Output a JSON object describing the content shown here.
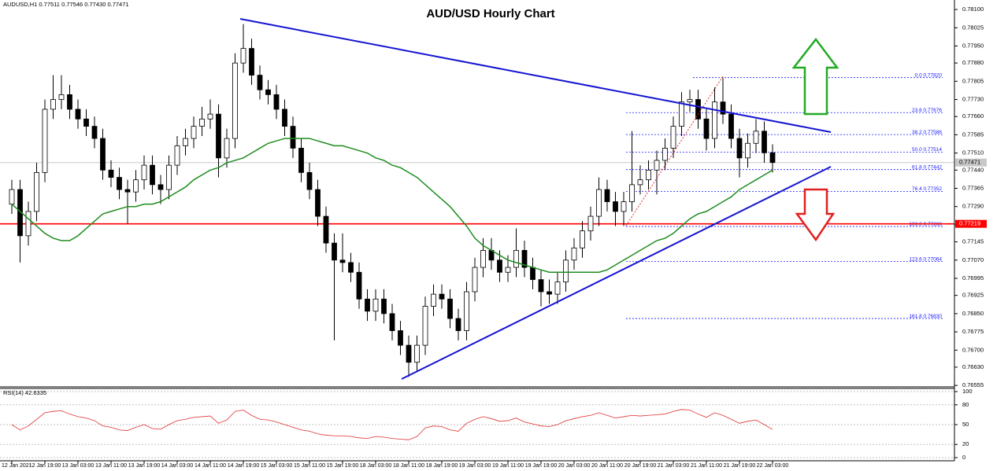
{
  "chart_data": {
    "type": "candlestick",
    "title": "AUD/USD Hourly Chart",
    "info": "AUDUSD,H1  0.77511 0.77546 0.77430 0.77471",
    "categories": [
      "12 Jan 2021",
      null,
      null,
      null,
      "12 Jan 19:00",
      null,
      null,
      null,
      "13 Jan 03:00",
      null,
      null,
      null,
      "13 Jan 11:00",
      null,
      null,
      null,
      "13 Jan 19:00",
      null,
      null,
      null,
      "14 Jan 03:00",
      null,
      null,
      null,
      "14 Jan 11:00",
      null,
      null,
      null,
      "14 Jan 19:00",
      null,
      null,
      null,
      "15 Jan 03:00",
      null,
      null,
      null,
      "15 Jan 11:00",
      null,
      null,
      null,
      "15 Jan 19:00",
      null,
      null,
      null,
      "18 Jan 03:00",
      null,
      null,
      null,
      "18 Jan 11:00",
      null,
      null,
      null,
      "18 Jan 19:00",
      null,
      null,
      null,
      "19 Jan 03:00",
      null,
      null,
      null,
      "19 Jan 11:00",
      null,
      null,
      null,
      "19 Jan 19:00",
      null,
      null,
      null,
      "20 Jan 03:00",
      null,
      null,
      null,
      "20 Jan 11:00",
      null,
      null,
      null,
      "20 Jan 19:00",
      null,
      null,
      null,
      "21 Jan 03:00",
      null,
      null,
      null,
      "21 Jan 11:00",
      null,
      null,
      null,
      "21 Jan 19:00",
      null,
      null,
      null,
      "22 Jan 03:00"
    ],
    "open": [
      0.773,
      0.7736,
      0.7717,
      0.7727,
      0.7743,
      0.7769,
      0.7773,
      0.7775,
      0.7769,
      0.7765,
      0.7762,
      0.7757,
      0.7744,
      0.7741,
      0.7736,
      0.7735,
      0.774,
      0.7746,
      0.7738,
      0.7736,
      0.7746,
      0.7754,
      0.7757,
      0.7762,
      0.7765,
      0.7767,
      0.7749,
      0.7757,
      0.7788,
      0.7794,
      0.7783,
      0.7777,
      0.7775,
      0.7769,
      0.7762,
      0.7753,
      0.7743,
      0.7736,
      0.7725,
      0.7714,
      0.7707,
      0.7706,
      0.7702,
      0.7691,
      0.7686,
      0.7691,
      0.7685,
      0.7678,
      0.7672,
      0.7665,
      0.7672,
      0.7688,
      0.7693,
      0.7691,
      0.7683,
      0.7678,
      0.7694,
      0.7704,
      0.7711,
      0.7707,
      0.7702,
      0.7704,
      0.7711,
      0.7704,
      0.7699,
      0.7694,
      0.7693,
      0.7698,
      0.7707,
      0.7712,
      0.7719,
      0.7725,
      0.7736,
      0.7731,
      0.7727,
      0.7731,
      0.7738,
      0.774,
      0.7744,
      0.7748,
      0.7753,
      0.7762,
      0.7772,
      0.7773,
      0.7765,
      0.7757,
      0.7772,
      0.7767,
      0.7757,
      0.7749,
      0.7755,
      0.776,
      0.77511
    ],
    "high": [
      0.774,
      0.774,
      0.7731,
      0.7747,
      0.7773,
      0.7783,
      0.7783,
      0.7779,
      0.7773,
      0.7769,
      0.7766,
      0.7761,
      0.7748,
      0.7745,
      0.774,
      0.7744,
      0.775,
      0.775,
      0.7742,
      0.775,
      0.7758,
      0.7761,
      0.7766,
      0.777,
      0.7773,
      0.7771,
      0.7761,
      0.7792,
      0.7804,
      0.7798,
      0.7787,
      0.7781,
      0.7779,
      0.7773,
      0.7766,
      0.7757,
      0.7747,
      0.774,
      0.7729,
      0.7718,
      0.7718,
      0.771,
      0.7706,
      0.7695,
      0.7695,
      0.7695,
      0.7689,
      0.7682,
      0.7676,
      0.7676,
      0.7692,
      0.7697,
      0.7697,
      0.7695,
      0.7687,
      0.7698,
      0.7708,
      0.7716,
      0.7716,
      0.7711,
      0.7709,
      0.772,
      0.7715,
      0.7708,
      0.7703,
      0.7699,
      0.7702,
      0.7711,
      0.7716,
      0.7723,
      0.7729,
      0.7741,
      0.774,
      0.7735,
      0.7735,
      0.776,
      0.7746,
      0.7748,
      0.7752,
      0.7757,
      0.7766,
      0.7776,
      0.7777,
      0.7777,
      0.7769,
      0.7778,
      0.7782,
      0.7771,
      0.7761,
      0.7759,
      0.7765,
      0.7764,
      0.77546
    ],
    "low": [
      0.7726,
      0.7706,
      0.7713,
      0.7723,
      0.7739,
      0.7765,
      0.7769,
      0.7765,
      0.7761,
      0.7758,
      0.7753,
      0.774,
      0.7737,
      0.7732,
      0.7722,
      0.7731,
      0.7736,
      0.7734,
      0.773,
      0.7732,
      0.7742,
      0.775,
      0.7753,
      0.7758,
      0.7761,
      0.7741,
      0.7745,
      0.7753,
      0.7784,
      0.7779,
      0.7773,
      0.7771,
      0.7765,
      0.7758,
      0.7749,
      0.7739,
      0.7732,
      0.7721,
      0.771,
      0.7674,
      0.7702,
      0.7698,
      0.7687,
      0.7682,
      0.7682,
      0.7681,
      0.7674,
      0.7668,
      0.7659,
      0.7661,
      0.7668,
      0.7684,
      0.7687,
      0.7679,
      0.7674,
      0.7674,
      0.769,
      0.77,
      0.7703,
      0.7698,
      0.7698,
      0.77,
      0.77,
      0.7695,
      0.7688,
      0.7689,
      0.7689,
      0.7694,
      0.7703,
      0.7708,
      0.7715,
      0.7721,
      0.7727,
      0.7721,
      0.7721,
      0.7727,
      0.7734,
      0.7736,
      0.7734,
      0.7744,
      0.7749,
      0.7758,
      0.7768,
      0.7761,
      0.7752,
      0.7753,
      0.7763,
      0.7753,
      0.7741,
      0.7745,
      0.7751,
      0.7747,
      0.7743
    ],
    "close": [
      0.7736,
      0.7717,
      0.7727,
      0.7743,
      0.7769,
      0.7773,
      0.7775,
      0.7769,
      0.7765,
      0.7762,
      0.7757,
      0.7744,
      0.7741,
      0.7736,
      0.7735,
      0.774,
      0.7746,
      0.7738,
      0.7736,
      0.7746,
      0.7754,
      0.7757,
      0.7762,
      0.7765,
      0.7767,
      0.7749,
      0.7757,
      0.7788,
      0.7794,
      0.7783,
      0.7777,
      0.7775,
      0.7769,
      0.7762,
      0.7753,
      0.7743,
      0.7736,
      0.7725,
      0.7714,
      0.7707,
      0.7706,
      0.7702,
      0.7691,
      0.7686,
      0.7691,
      0.7685,
      0.7678,
      0.7672,
      0.7665,
      0.7672,
      0.7688,
      0.7693,
      0.7691,
      0.7683,
      0.7678,
      0.7694,
      0.7704,
      0.7711,
      0.7707,
      0.7702,
      0.7704,
      0.7711,
      0.7704,
      0.7699,
      0.7694,
      0.7693,
      0.7698,
      0.7707,
      0.7712,
      0.7719,
      0.7725,
      0.7736,
      0.7731,
      0.7727,
      0.7731,
      0.7738,
      0.774,
      0.7744,
      0.7748,
      0.7753,
      0.7762,
      0.7772,
      0.7773,
      0.7765,
      0.7757,
      0.7772,
      0.7767,
      0.7757,
      0.7749,
      0.7755,
      0.776,
      0.77511,
      0.77471
    ],
    "up_color": "#ffffff",
    "down_color": "#000000",
    "ylim": [
      0.76549,
      0.78139
    ],
    "yticks": [
      {
        "value": 0.781,
        "label": "0.78100"
      },
      0.78025,
      {
        "value": 0.7795,
        "label": "0.77950"
      },
      {
        "value": 0.7788,
        "label": "0.77880"
      },
      0.77805,
      {
        "value": 0.7773,
        "label": "0.77730"
      },
      {
        "value": 0.7766,
        "label": "0.77660"
      },
      0.77585,
      {
        "value": 0.7751,
        "label": "0.77510"
      },
      {
        "value": 0.7744,
        "label": "0.77440"
      },
      0.77365,
      {
        "value": 0.7729,
        "label": "0.77290"
      },
      0.77215,
      0.77145,
      {
        "value": 0.7707,
        "label": "0.77070"
      },
      0.76995,
      0.76925,
      {
        "value": 0.7685,
        "label": "0.76850"
      },
      0.76775,
      {
        "value": 0.767,
        "label": "0.76700"
      },
      {
        "value": 0.7663,
        "label": "0.76630"
      },
      0.76555
    ],
    "ma": {
      "color": "#1e8c1e",
      "values": [
        0.773,
        0.7727,
        0.7724,
        0.7721,
        0.7718,
        0.7716,
        0.7715,
        0.7715,
        0.7717,
        0.772,
        0.7723,
        0.7726,
        0.7727,
        0.7728,
        0.7729,
        0.7729,
        0.773,
        0.773,
        0.7731,
        0.7733,
        0.7735,
        0.7737,
        0.774,
        0.7742,
        0.7744,
        0.7745,
        0.7747,
        0.7748,
        0.7749,
        0.7751,
        0.7753,
        0.7755,
        0.7756,
        0.7757,
        0.7757,
        0.7757,
        0.7757,
        0.7756,
        0.7755,
        0.7754,
        0.7754,
        0.7753,
        0.7752,
        0.7751,
        0.7749,
        0.7748,
        0.7746,
        0.7745,
        0.7743,
        0.7741,
        0.7738,
        0.7735,
        0.7732,
        0.7729,
        0.7725,
        0.7721,
        0.7716,
        0.7713,
        0.7711,
        0.7709,
        0.7707,
        0.7706,
        0.7705,
        0.7704,
        0.7703,
        0.7702,
        0.7702,
        0.7702,
        0.7702,
        0.7702,
        0.7702,
        0.7702,
        0.7703,
        0.7705,
        0.7707,
        0.7709,
        0.7711,
        0.7713,
        0.7715,
        0.7716,
        0.7718,
        0.7721,
        0.7724,
        0.7726,
        0.7727,
        0.7729,
        0.7731,
        0.7733,
        0.7736,
        0.7738,
        0.774,
        0.7742,
        0.7744
      ]
    },
    "horizontal_line": {
      "value": 0.77219,
      "color": "#ff0000"
    },
    "fibonacci": {
      "color": "#1a1aff",
      "levels": [
        {
          "label": "0.0 0.77820",
          "price": 0.7782
        },
        {
          "label": "23.6 0.77676",
          "price": 0.77676
        },
        {
          "label": "38.2 0.77586",
          "price": 0.77586
        },
        {
          "label": "50.0 0.77514",
          "price": 0.77514
        },
        {
          "label": "61.8 0.77442",
          "price": 0.77442
        },
        {
          "label": "76.4 0.77352",
          "price": 0.77352
        },
        {
          "label": "100.0 0.77208",
          "price": 0.77208
        },
        {
          "label": "123.6 0.77064",
          "price": 0.77064
        },
        {
          "label": "161.8 0.76830",
          "price": 0.7683
        }
      ]
    },
    "rsi": {
      "label": "RSI(14) 42.6335",
      "color": "#e03030",
      "ylim": [
        0,
        100
      ],
      "yticks": [
        100,
        80,
        50,
        20,
        0
      ],
      "values": [
        50,
        42,
        48,
        58,
        68,
        70,
        71,
        66,
        62,
        60,
        56,
        48,
        46,
        42,
        41,
        46,
        50,
        44,
        43,
        50,
        56,
        58,
        61,
        62,
        63,
        52,
        57,
        70,
        72,
        64,
        58,
        57,
        54,
        50,
        46,
        42,
        40,
        36,
        34,
        33,
        33,
        32,
        30,
        29,
        32,
        31,
        29,
        28,
        27,
        32,
        45,
        48,
        47,
        42,
        40,
        52,
        58,
        62,
        59,
        55,
        56,
        60,
        54,
        51,
        48,
        47,
        50,
        56,
        59,
        62,
        64,
        68,
        64,
        60,
        62,
        64,
        63,
        64,
        65,
        66,
        70,
        73,
        72,
        66,
        61,
        68,
        64,
        58,
        52,
        55,
        57,
        50,
        42.6335
      ]
    }
  }
}
